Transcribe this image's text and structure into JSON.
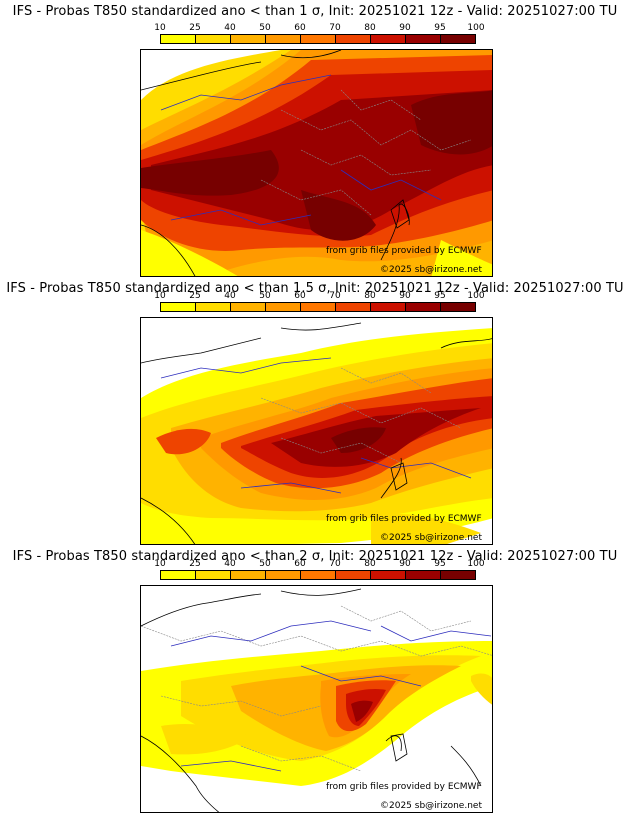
{
  "legend": {
    "ticks": [
      "10",
      "25",
      "40",
      "50",
      "60",
      "70",
      "80",
      "90",
      "95",
      "100"
    ],
    "colors": [
      "#ffff00",
      "#ffdd00",
      "#ffb300",
      "#ff9900",
      "#ff7700",
      "#ee4400",
      "#cc1100",
      "#990000",
      "#770000"
    ]
  },
  "panels": [
    {
      "title": "IFS - Probas T850  standardized ano < than 1 σ, Init: 20251021 12z - Valid: 20251027:00 TU",
      "threshold": "1 σ",
      "credit_source": "from grib files provided by ECMWF",
      "credit_copyright": "©2025 sb@irizone.net"
    },
    {
      "title": "IFS - Probas T850  standardized ano < than 1.5 σ, Init: 20251021 12z - Valid: 20251027:00 TU",
      "threshold": "1.5 σ",
      "credit_source": "from grib files provided by ECMWF",
      "credit_copyright": "©2025 sb@irizone.net"
    },
    {
      "title": "IFS - Probas T850  standardized ano < than 2 σ, Init: 20251021 12z - Valid: 20251027:00 TU",
      "threshold": "2 σ",
      "credit_source": "from grib files provided by ECMWF",
      "credit_copyright": "©2025 sb@irizone.net"
    }
  ]
}
